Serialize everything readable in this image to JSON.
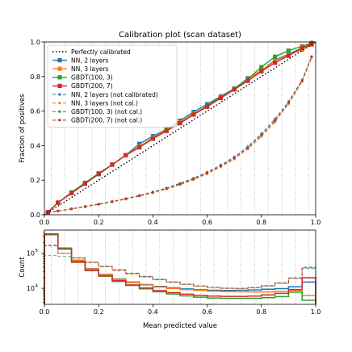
{
  "chart_data": [
    {
      "type": "line",
      "title": "Calibration plot (scan dataset)",
      "xlabel": "",
      "ylabel": "Fraction of positives",
      "xlim": [
        0,
        1
      ],
      "ylim": [
        0,
        1
      ],
      "xticks": [
        "0.0",
        "0.2",
        "0.4",
        "0.6",
        "0.8",
        "1.0"
      ],
      "yticks": [
        "0.0",
        "0.2",
        "0.4",
        "0.6",
        "0.8",
        "1.0"
      ],
      "grid": "vertical dotted lines at bin centers",
      "legend_position": "upper-left",
      "x": [
        0.013,
        0.05,
        0.1,
        0.15,
        0.2,
        0.25,
        0.3,
        0.35,
        0.4,
        0.45,
        0.5,
        0.55,
        0.6,
        0.65,
        0.7,
        0.75,
        0.8,
        0.85,
        0.9,
        0.95,
        0.985
      ],
      "series": [
        {
          "name": "Perfectly calibrated",
          "color": "#000000",
          "style": "dotted",
          "marker": "none",
          "x": [
            0,
            1
          ],
          "values": [
            0,
            1
          ]
        },
        {
          "name": "NN, 2 layers",
          "color": "#1f77b4",
          "style": "solid",
          "marker": "square",
          "values": [
            0.015,
            0.07,
            0.125,
            0.18,
            0.235,
            0.29,
            0.345,
            0.41,
            0.455,
            0.495,
            0.545,
            0.595,
            0.64,
            0.685,
            0.73,
            0.79,
            0.835,
            0.895,
            0.93,
            0.965,
            0.985
          ]
        },
        {
          "name": "NN, 3 layers",
          "color": "#ff7f0e",
          "style": "solid",
          "marker": "square",
          "values": [
            0.015,
            0.07,
            0.125,
            0.18,
            0.24,
            0.29,
            0.345,
            0.395,
            0.445,
            0.495,
            0.535,
            0.585,
            0.63,
            0.68,
            0.73,
            0.785,
            0.835,
            0.89,
            0.925,
            0.955,
            0.985
          ]
        },
        {
          "name": "GBDT(100, 3)",
          "color": "#2ca02c",
          "style": "solid",
          "marker": "square",
          "values": [
            0.015,
            0.07,
            0.13,
            0.185,
            0.24,
            0.29,
            0.345,
            0.39,
            0.44,
            0.49,
            0.53,
            0.58,
            0.63,
            0.68,
            0.73,
            0.785,
            0.855,
            0.915,
            0.95,
            0.975,
            0.995
          ]
        },
        {
          "name": "GBDT(200, 7)",
          "color": "#d62728",
          "style": "solid",
          "marker": "square",
          "values": [
            0.015,
            0.07,
            0.125,
            0.18,
            0.235,
            0.29,
            0.345,
            0.39,
            0.44,
            0.485,
            0.53,
            0.58,
            0.625,
            0.675,
            0.725,
            0.775,
            0.83,
            0.88,
            0.92,
            0.965,
            0.99
          ]
        },
        {
          "name": "NN, 2 layers (not calibrated)",
          "color": "#1f77b4",
          "style": "dashed",
          "marker": "circle",
          "values": [
            0.012,
            0.022,
            0.035,
            0.048,
            0.062,
            0.077,
            0.094,
            0.112,
            0.132,
            0.155,
            0.182,
            0.212,
            0.247,
            0.288,
            0.335,
            0.395,
            0.47,
            0.555,
            0.655,
            0.78,
            0.915
          ]
        },
        {
          "name": "NN, 3 layers (not cal.)",
          "color": "#ff7f0e",
          "style": "dashed",
          "marker": "circle",
          "values": [
            0.012,
            0.021,
            0.033,
            0.046,
            0.06,
            0.074,
            0.09,
            0.108,
            0.127,
            0.148,
            0.173,
            0.202,
            0.236,
            0.276,
            0.322,
            0.38,
            0.452,
            0.535,
            0.64,
            0.77,
            0.91
          ]
        },
        {
          "name": "GBDT(100, 3) (not cal.)",
          "color": "#2ca02c",
          "style": "dashed",
          "marker": "circle",
          "values": [
            0.012,
            0.022,
            0.034,
            0.047,
            0.061,
            0.076,
            0.092,
            0.11,
            0.13,
            0.152,
            0.178,
            0.207,
            0.241,
            0.282,
            0.328,
            0.387,
            0.46,
            0.545,
            0.648,
            0.775,
            0.915
          ]
        },
        {
          "name": "GBDT(200, 7) (not cal.)",
          "color": "#d62728",
          "style": "dashed",
          "marker": "circle",
          "values": [
            0.012,
            0.022,
            0.034,
            0.047,
            0.061,
            0.076,
            0.092,
            0.11,
            0.13,
            0.152,
            0.178,
            0.207,
            0.241,
            0.282,
            0.328,
            0.387,
            0.46,
            0.545,
            0.648,
            0.775,
            0.915
          ]
        }
      ]
    },
    {
      "type": "bar",
      "title": "",
      "xlabel": "Mean predicted value",
      "ylabel": "Count",
      "xlim": [
        0,
        1
      ],
      "yscale": "log",
      "ylim": [
        3500,
        450000
      ],
      "xticks": [
        "0.0",
        "0.2",
        "0.4",
        "0.6",
        "0.8",
        "1.0"
      ],
      "yticks": [
        "10",
        "10"
      ],
      "ytick_exponents": [
        "4",
        "5"
      ],
      "grid": "vertical dotted lines at bin centers",
      "bin_edges": [
        0,
        0.05,
        0.1,
        0.15,
        0.2,
        0.25,
        0.3,
        0.35,
        0.4,
        0.45,
        0.5,
        0.55,
        0.6,
        0.65,
        0.7,
        0.75,
        0.8,
        0.85,
        0.9,
        0.95,
        1.0
      ],
      "series": [
        {
          "name": "NN, 2 layers",
          "color": "#1f77b4",
          "style": "solid",
          "values": [
            330000,
            140000,
            63000,
            36000,
            25000,
            18500,
            15000,
            12800,
            11300,
            10300,
            9600,
            9100,
            8800,
            8700,
            8800,
            9000,
            9400,
            9800,
            11000,
            15000
          ]
        },
        {
          "name": "NN, 3 layers",
          "color": "#ff7f0e",
          "style": "solid",
          "values": [
            330000,
            140000,
            62000,
            35500,
            24500,
            18000,
            14600,
            12400,
            10900,
            9900,
            9200,
            8700,
            8300,
            8100,
            8000,
            7900,
            7900,
            8200,
            8700,
            6200
          ]
        },
        {
          "name": "GBDT(100, 3)",
          "color": "#2ca02c",
          "style": "solid",
          "values": [
            340000,
            135000,
            58000,
            33000,
            22000,
            15700,
            12100,
            9700,
            8000,
            6900,
            6100,
            5600,
            5300,
            5200,
            5200,
            5200,
            5400,
            5800,
            7800,
            4600
          ]
        },
        {
          "name": "GBDT(200, 7)",
          "color": "#d62728",
          "style": "solid",
          "values": [
            350000,
            130000,
            55000,
            32000,
            22500,
            16500,
            12500,
            10200,
            8600,
            7500,
            6800,
            6300,
            6000,
            5900,
            5900,
            6000,
            6500,
            7200,
            9200,
            20000
          ]
        },
        {
          "name": "NN, 2 layers (not calibrated)",
          "color": "#1f77b4",
          "style": "dashed",
          "values": [
            160000,
            100000,
            75000,
            55000,
            42000,
            33000,
            26500,
            21500,
            17800,
            15000,
            13000,
            11600,
            10600,
            10000,
            9900,
            10400,
            11600,
            13800,
            19000,
            37000
          ]
        },
        {
          "name": "NN, 3 layers (not cal.)",
          "color": "#ff7f0e",
          "style": "dashed",
          "values": [
            165000,
            100000,
            74000,
            54000,
            41000,
            32000,
            25500,
            20800,
            17400,
            14800,
            12900,
            11500,
            10500,
            10000,
            9900,
            10400,
            11800,
            14200,
            19500,
            38000
          ]
        },
        {
          "name": "GBDT(100, 3) (not cal.)",
          "color": "#2ca02c",
          "style": "dashed",
          "values": [
            85000,
            80000,
            72000,
            56000,
            43000,
            34000,
            27000,
            22000,
            18200,
            15300,
            13200,
            11700,
            10700,
            10100,
            10000,
            10600,
            12000,
            14500,
            20000,
            40000
          ]
        },
        {
          "name": "GBDT(200, 7) (not cal.)",
          "color": "#d62728",
          "style": "dashed",
          "values": [
            170000,
            98000,
            73000,
            54000,
            41500,
            32500,
            26000,
            21200,
            17600,
            14900,
            13000,
            11600,
            10600,
            10000,
            9900,
            10400,
            11700,
            14000,
            19300,
            39000
          ]
        }
      ]
    }
  ]
}
